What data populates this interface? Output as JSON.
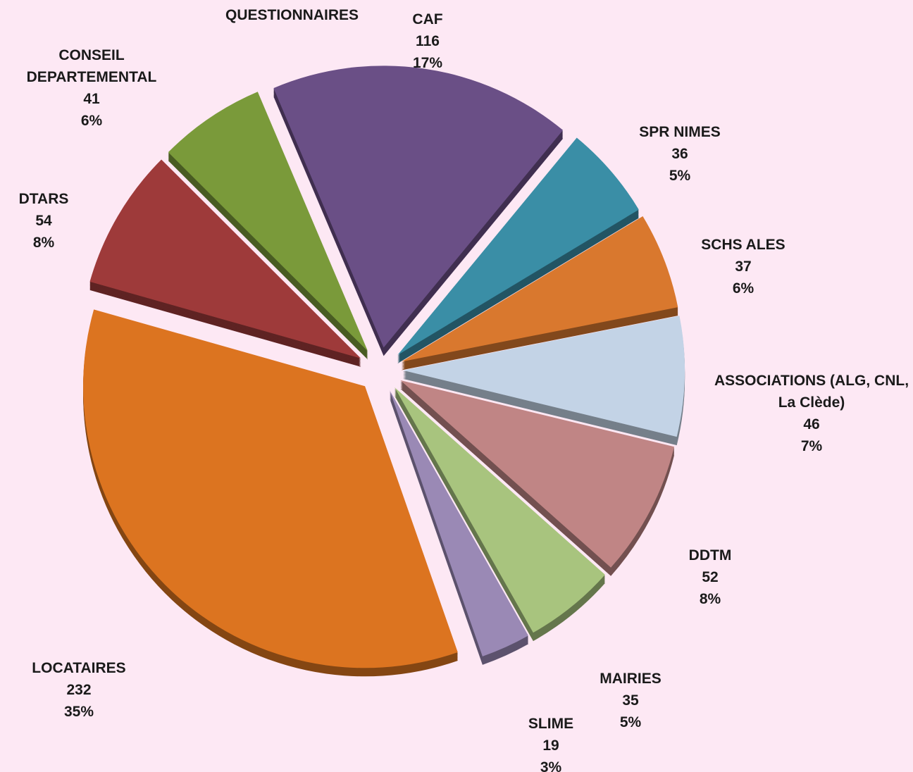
{
  "chart_data": {
    "type": "pie",
    "title": "QUESTIONNAIRES",
    "categories": [
      "CAF",
      "SPR NIMES",
      "SCHS ALES",
      "ASSOCIATIONS (ALG, CNL, La Clède)",
      "DDTM",
      "MAIRIES",
      "SLIME",
      "LOCATAIRES",
      "DTARS",
      "CONSEIL DEPARTEMENTAL"
    ],
    "values": [
      116,
      36,
      37,
      46,
      52,
      35,
      19,
      232,
      54,
      41
    ],
    "percent_labels": [
      "17%",
      "5%",
      "6%",
      "7%",
      "8%",
      "5%",
      "3%",
      "35%",
      "8%",
      "6%"
    ],
    "colors": [
      "#6a4f86",
      "#3a8ea6",
      "#d9782e",
      "#c3d3e6",
      "#c08585",
      "#a8c47e",
      "#9a89b5",
      "#dc7420",
      "#9e3a3a",
      "#7a9a3a"
    ]
  }
}
